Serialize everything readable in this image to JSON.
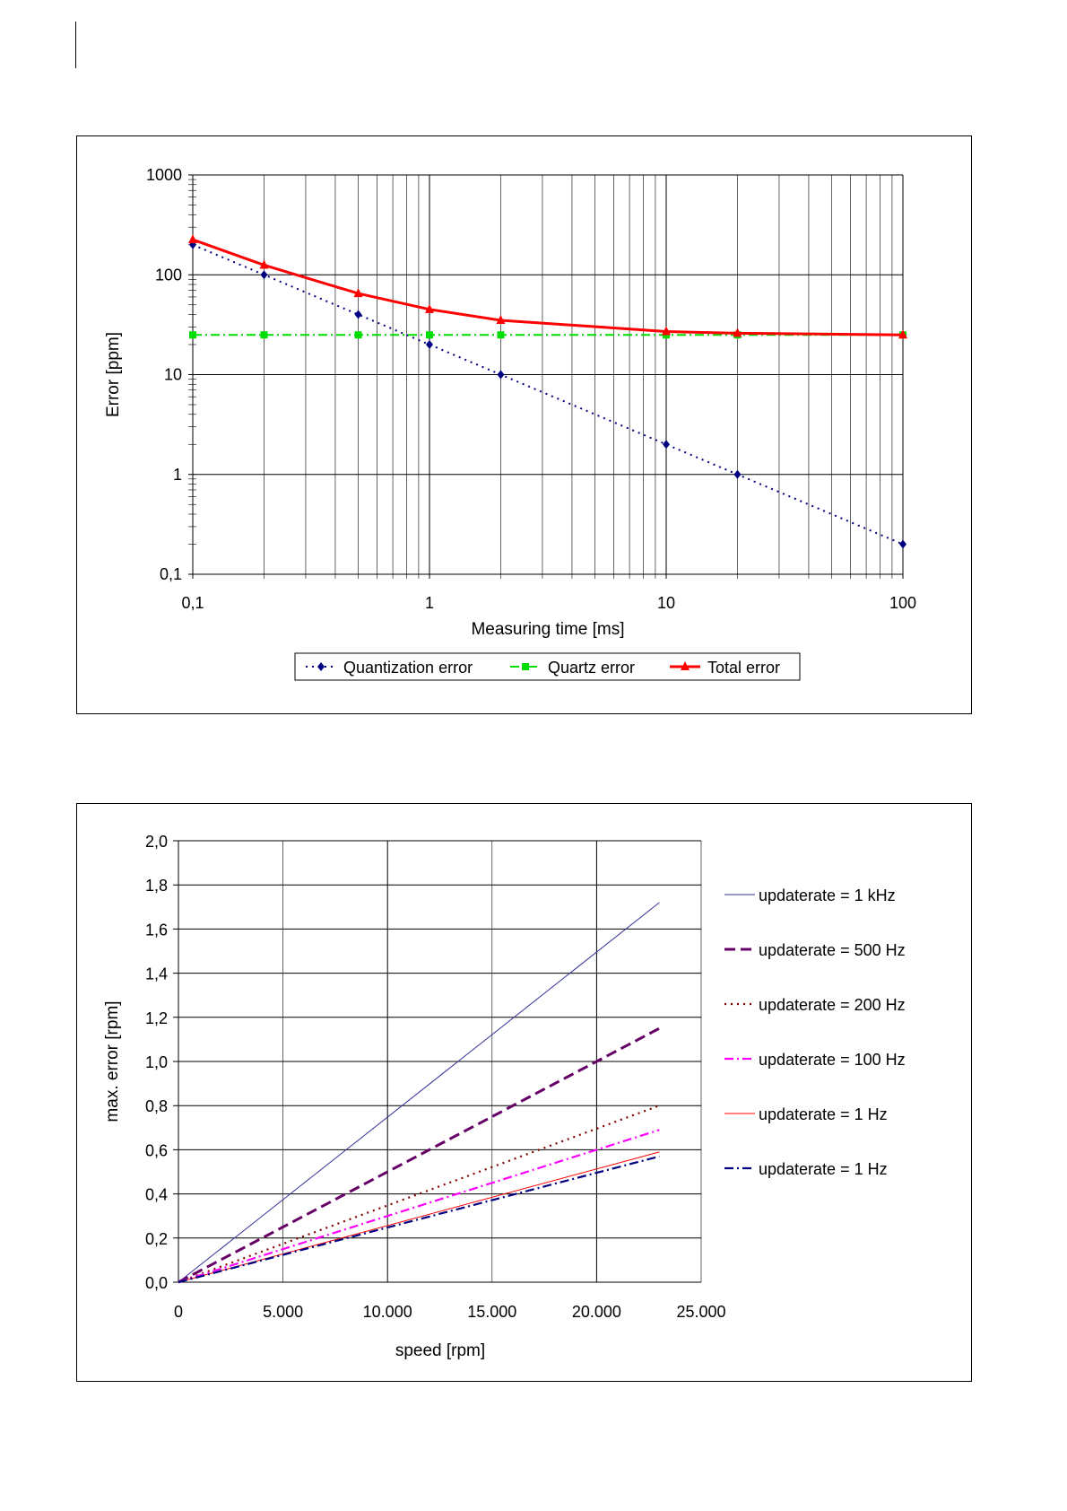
{
  "chart_data": [
    {
      "type": "line",
      "xscale": "log",
      "yscale": "log",
      "xlabel": "Measuring time [ms]",
      "ylabel": "Error [ppm]",
      "xlim": [
        0.1,
        100
      ],
      "ylim": [
        0.1,
        1000
      ],
      "x_ticks": [
        "0,1",
        "1",
        "10",
        "100"
      ],
      "y_ticks": [
        "0,1",
        "1",
        "10",
        "100",
        "1000"
      ],
      "grid": true,
      "legend_position": "bottom",
      "x": [
        0.1,
        0.2,
        0.5,
        1,
        2,
        10,
        20,
        100
      ],
      "series": [
        {
          "name": "Quantization error",
          "color": "#000080",
          "style": "dotted",
          "marker": "diamond",
          "values": [
            200,
            100,
            40,
            20,
            10,
            2,
            1,
            0.2
          ]
        },
        {
          "name": "Quartz error",
          "color": "#00dd00",
          "style": "dashdot",
          "marker": "square",
          "values": [
            25,
            25,
            25,
            25,
            25,
            25,
            25,
            25
          ]
        },
        {
          "name": "Total error",
          "color": "#ff0000",
          "style": "solid",
          "marker": "triangle",
          "values": [
            225,
            125,
            65,
            45,
            35,
            27,
            26,
            25
          ]
        }
      ]
    },
    {
      "type": "line",
      "xlabel": "speed [rpm]",
      "ylabel": "max. error [rpm]",
      "xlim": [
        0,
        25000
      ],
      "ylim": [
        0,
        2.0
      ],
      "x_ticks": [
        "0",
        "5.000",
        "10.000",
        "15.000",
        "20.000",
        "25.000"
      ],
      "y_ticks": [
        "0,0",
        "0,2",
        "0,4",
        "0,6",
        "0,8",
        "1,0",
        "1,2",
        "1,4",
        "1,6",
        "1,8",
        "2,0"
      ],
      "grid": true,
      "legend_position": "right",
      "x": [
        0,
        23000
      ],
      "series": [
        {
          "name": "updaterate = 1 kHz",
          "color": "#333399",
          "style": "thin",
          "values": [
            0,
            1.72
          ]
        },
        {
          "name": "updaterate = 500 Hz",
          "color": "#660066",
          "style": "dashed",
          "values": [
            0,
            1.15
          ]
        },
        {
          "name": "updaterate = 200 Hz",
          "color": "#800000",
          "style": "dotted",
          "values": [
            0,
            0.8
          ]
        },
        {
          "name": "updaterate = 100 Hz",
          "color": "#ff00ff",
          "style": "dashdot",
          "values": [
            0,
            0.69
          ]
        },
        {
          "name": "updaterate = 1 Hz",
          "color": "#ff0000",
          "style": "thin",
          "values": [
            0,
            0.59
          ]
        },
        {
          "name": "updaterate = 1 Hz",
          "color": "#000080",
          "style": "dashdot",
          "values": [
            0,
            0.57
          ]
        }
      ]
    }
  ]
}
